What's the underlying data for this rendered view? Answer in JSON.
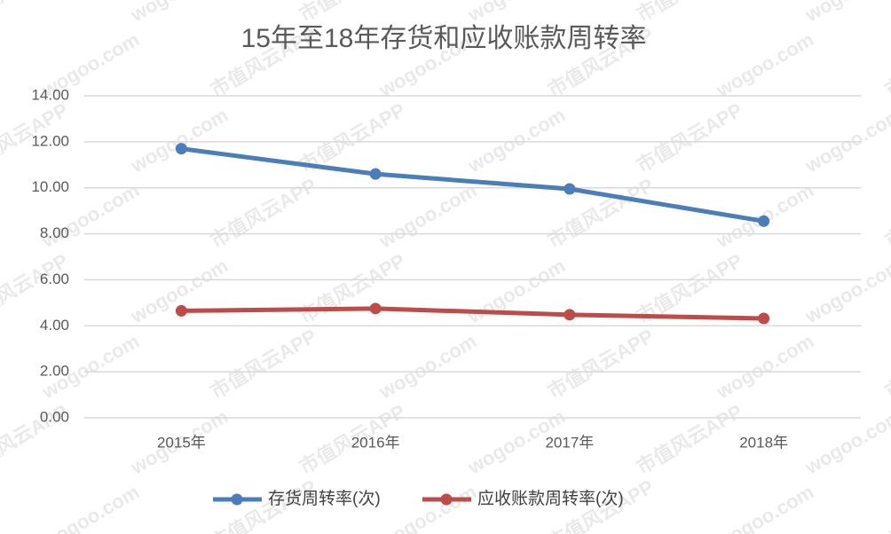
{
  "chart_data": {
    "type": "line",
    "title": "15年至18年存货和应收账款周转率",
    "categories": [
      "2015年",
      "2016年",
      "2017年",
      "2018年"
    ],
    "series": [
      {
        "name": "存货周转率(次)",
        "color": "#4a7ebb",
        "values": [
          11.7,
          10.6,
          9.95,
          8.55
        ]
      },
      {
        "name": "应收账款周转率(次)",
        "color": "#be4b48",
        "values": [
          4.65,
          4.75,
          4.48,
          4.32
        ]
      }
    ],
    "ylim": [
      0,
      14
    ],
    "yticks": [
      {
        "value": 0,
        "label": "0.00"
      },
      {
        "value": 2,
        "label": "2.00"
      },
      {
        "value": 4,
        "label": "4.00"
      },
      {
        "value": 6,
        "label": "6.00"
      },
      {
        "value": 8,
        "label": "8.00"
      },
      {
        "value": 10,
        "label": "10.00"
      },
      {
        "value": 12,
        "label": "12.00"
      },
      {
        "value": 14,
        "label": "14.00"
      }
    ],
    "grid": true,
    "legend": "bottom",
    "watermark": [
      "市值风云APP",
      "wogoo.com"
    ]
  }
}
